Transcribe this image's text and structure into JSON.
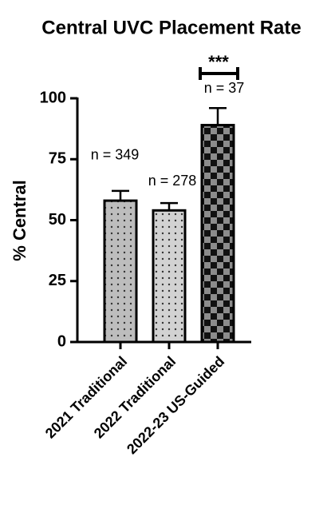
{
  "chart_data": {
    "type": "bar",
    "title": "Central UVC Placement Rate",
    "y_label": "% Central",
    "categories": [
      "2021 Traditional",
      "2022 Traditional",
      "2022-23 US-Guided"
    ],
    "values": [
      58,
      54,
      89
    ],
    "errors": [
      4,
      3,
      7
    ],
    "annotations": [
      "n = 349",
      "n = 278",
      "n = 37"
    ],
    "significance": "***",
    "ylim": [
      0,
      100
    ],
    "yticks": [
      0,
      25,
      50,
      75,
      100
    ]
  }
}
